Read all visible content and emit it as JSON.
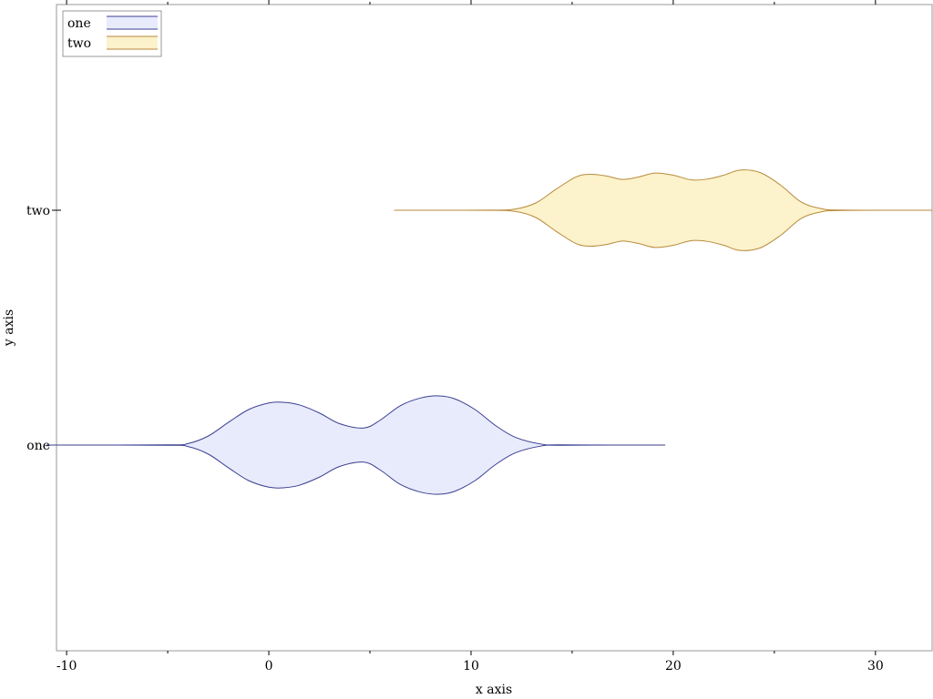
{
  "chart_data": {
    "type": "violin",
    "orientation": "horizontal",
    "title": "",
    "xlabel": "x axis",
    "ylabel": "y axis",
    "xlim": [
      -10.5,
      32.8
    ],
    "x_ticks": [
      -10,
      0,
      10,
      20,
      30
    ],
    "x_tick_labels": [
      "-10",
      "0",
      "10",
      "20",
      "30"
    ],
    "x_minor_ticks": [
      -5,
      5,
      15,
      25
    ],
    "categories": [
      "one",
      "two"
    ],
    "legend": {
      "position": "top-left",
      "entries": [
        "one",
        "two"
      ]
    },
    "series": [
      {
        "name": "one",
        "fill": "#e8ebfc",
        "line": "#3b3f8f",
        "range": [
          -11,
          19.6
        ],
        "density_x": [
          -11,
          -5,
          -4,
          -3,
          -2,
          -1,
          0,
          0.7,
          1.5,
          2.5,
          3.5,
          4.7,
          5.5,
          6.5,
          7.5,
          8.4,
          9.2,
          10.2,
          11.2,
          12.2,
          13.5,
          14.5,
          19.6
        ],
        "density_y": [
          0,
          0.004,
          0.035,
          0.21,
          0.53,
          0.83,
          0.985,
          1.0,
          0.94,
          0.75,
          0.5,
          0.4,
          0.58,
          0.92,
          1.1,
          1.15,
          1.08,
          0.83,
          0.46,
          0.18,
          0.02,
          0.004,
          0
        ]
      },
      {
        "name": "two",
        "fill": "#fcf2cb",
        "line": "#b88a3b",
        "range": [
          6.2,
          32.8
        ],
        "density_x": [
          6.2,
          10.8,
          12.2,
          13.2,
          14.2,
          15.2,
          15.9,
          16.7,
          17.5,
          18.3,
          19.1,
          20.0,
          20.9,
          21.7,
          22.5,
          23.3,
          24.3,
          25.3,
          26.3,
          27.2,
          28.3,
          32.8
        ],
        "density_y": [
          0,
          0.002,
          0.03,
          0.17,
          0.49,
          0.78,
          0.84,
          0.8,
          0.72,
          0.78,
          0.87,
          0.82,
          0.71,
          0.73,
          0.82,
          0.94,
          0.88,
          0.59,
          0.2,
          0.05,
          0.004,
          0
        ]
      }
    ]
  }
}
